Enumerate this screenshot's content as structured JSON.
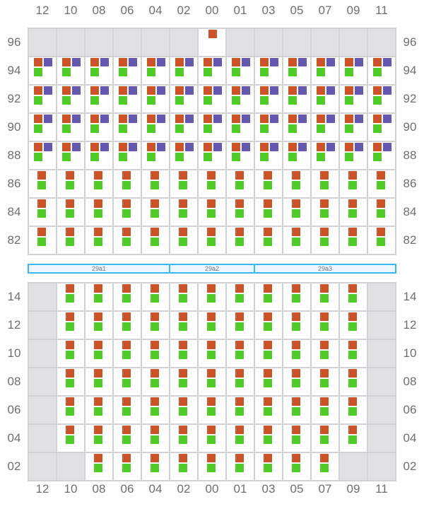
{
  "columns": [
    "12",
    "10",
    "08",
    "06",
    "04",
    "02",
    "00",
    "01",
    "03",
    "05",
    "07",
    "09",
    "11"
  ],
  "colors": {
    "orange": "#cc5229",
    "purple": "#6459b0",
    "green": "#50cc29",
    "unavailable": "#e2e2e5",
    "band": "#3bb9ee"
  },
  "top_section": {
    "rows": [
      {
        "label": "96",
        "cells": [
          "g",
          "g",
          "g",
          "g",
          "g",
          "g",
          "o",
          "g",
          "g",
          "g",
          "g",
          "g",
          "g"
        ]
      },
      {
        "label": "94",
        "cells": [
          "opg",
          "opg",
          "opg",
          "opg",
          "opg",
          "opg",
          "opg",
          "opg",
          "opg",
          "opg",
          "opg",
          "opg",
          "opg"
        ]
      },
      {
        "label": "92",
        "cells": [
          "opg",
          "opg",
          "opg",
          "opg",
          "opg",
          "opg",
          "opg",
          "opg",
          "opg",
          "opg",
          "opg",
          "opg",
          "opg"
        ]
      },
      {
        "label": "90",
        "cells": [
          "opg",
          "opg",
          "opg",
          "opg",
          "opg",
          "opg",
          "opg",
          "opg",
          "opg",
          "opg",
          "opg",
          "opg",
          "opg"
        ]
      },
      {
        "label": "88",
        "cells": [
          "opg",
          "opg",
          "opg",
          "opg",
          "opg",
          "opg",
          "opg",
          "opg",
          "opg",
          "opg",
          "opg",
          "opg",
          "opg"
        ]
      },
      {
        "label": "86",
        "cells": [
          "og",
          "og",
          "og",
          "og",
          "og",
          "og",
          "og",
          "og",
          "og",
          "og",
          "og",
          "og",
          "og"
        ]
      },
      {
        "label": "84",
        "cells": [
          "og",
          "og",
          "og",
          "og",
          "og",
          "og",
          "og",
          "og",
          "og",
          "og",
          "og",
          "og",
          "og"
        ]
      },
      {
        "label": "82",
        "cells": [
          "og",
          "og",
          "og",
          "og",
          "og",
          "og",
          "og",
          "og",
          "og",
          "og",
          "og",
          "og",
          "og"
        ]
      }
    ]
  },
  "bands": [
    {
      "label": "29a1"
    },
    {
      "label": "29a2"
    },
    {
      "label": "29a3"
    }
  ],
  "bottom_section": {
    "rows": [
      {
        "label": "14",
        "cells": [
          "g",
          "og",
          "og",
          "og",
          "og",
          "og",
          "og",
          "og",
          "og",
          "og",
          "og",
          "og",
          "g"
        ]
      },
      {
        "label": "12",
        "cells": [
          "g",
          "og",
          "og",
          "og",
          "og",
          "og",
          "og",
          "og",
          "og",
          "og",
          "og",
          "og",
          "g"
        ]
      },
      {
        "label": "10",
        "cells": [
          "g",
          "og",
          "og",
          "og",
          "og",
          "og",
          "og",
          "og",
          "og",
          "og",
          "og",
          "og",
          "g"
        ]
      },
      {
        "label": "08",
        "cells": [
          "g",
          "og",
          "og",
          "og",
          "og",
          "og",
          "og",
          "og",
          "og",
          "og",
          "og",
          "og",
          "g"
        ]
      },
      {
        "label": "06",
        "cells": [
          "g",
          "og",
          "og",
          "og",
          "og",
          "og",
          "og",
          "og",
          "og",
          "og",
          "og",
          "og",
          "g"
        ]
      },
      {
        "label": "04",
        "cells": [
          "g",
          "og",
          "og",
          "og",
          "og",
          "og",
          "og",
          "og",
          "og",
          "og",
          "og",
          "og",
          "g"
        ]
      },
      {
        "label": "02",
        "cells": [
          "g",
          "g",
          "og",
          "og",
          "og",
          "og",
          "og",
          "og",
          "og",
          "og",
          "og",
          "g",
          "g"
        ]
      }
    ]
  }
}
